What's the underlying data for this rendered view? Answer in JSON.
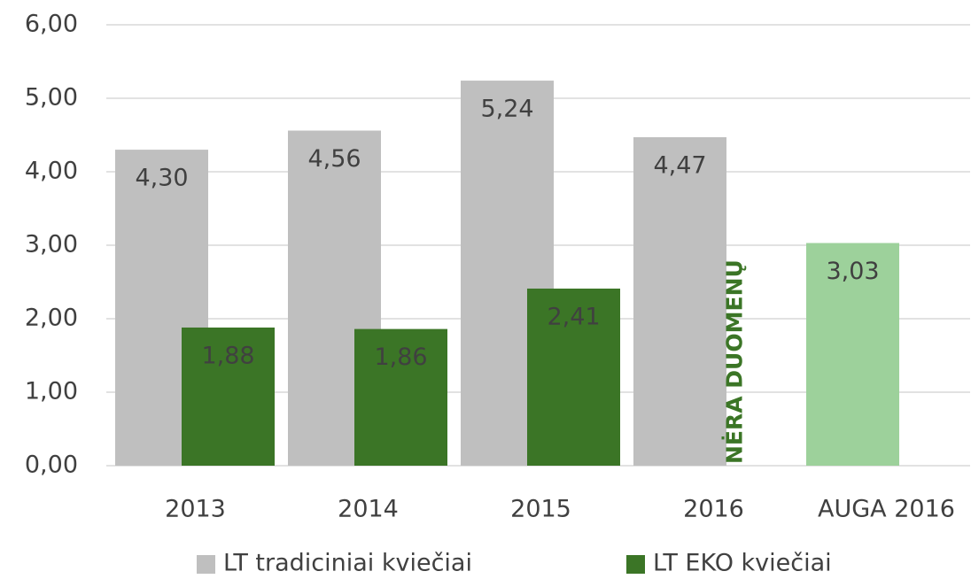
{
  "chart_data": {
    "type": "bar",
    "categories": [
      "2013",
      "2014",
      "2015",
      "2016",
      "AUGA 2016"
    ],
    "series": [
      {
        "name": "LT tradiciniai kviečiai",
        "color": "#bfbfbf",
        "colors": [
          "#bfbfbf",
          "#bfbfbf",
          "#bfbfbf",
          "#bfbfbf",
          "#9dd19b"
        ],
        "values": [
          4.3,
          4.56,
          5.24,
          4.47,
          3.03
        ],
        "value_labels": [
          "4,30",
          "4,56",
          "5,24",
          "4,47",
          "3,03"
        ]
      },
      {
        "name": "LT EKO kviečiai",
        "color": "#3b7526",
        "values": [
          1.88,
          1.86,
          2.41,
          null,
          null
        ],
        "value_labels": [
          "1,88",
          "1,86",
          "2,41",
          null,
          null
        ]
      }
    ],
    "annotations": [
      {
        "text": "NĖRA DUOMENŲ",
        "category": "2016",
        "color": "#3b7526"
      }
    ],
    "ylim": [
      0,
      6
    ],
    "yticks": [
      {
        "value": 0,
        "label": "0,00"
      },
      {
        "value": 1,
        "label": "1,00"
      },
      {
        "value": 2,
        "label": "2,00"
      },
      {
        "value": 3,
        "label": "3,00"
      },
      {
        "value": 4,
        "label": "4,00"
      },
      {
        "value": 5,
        "label": "5,00"
      },
      {
        "value": 6,
        "label": "6,00"
      }
    ],
    "grid": true,
    "legend": "bottom"
  }
}
